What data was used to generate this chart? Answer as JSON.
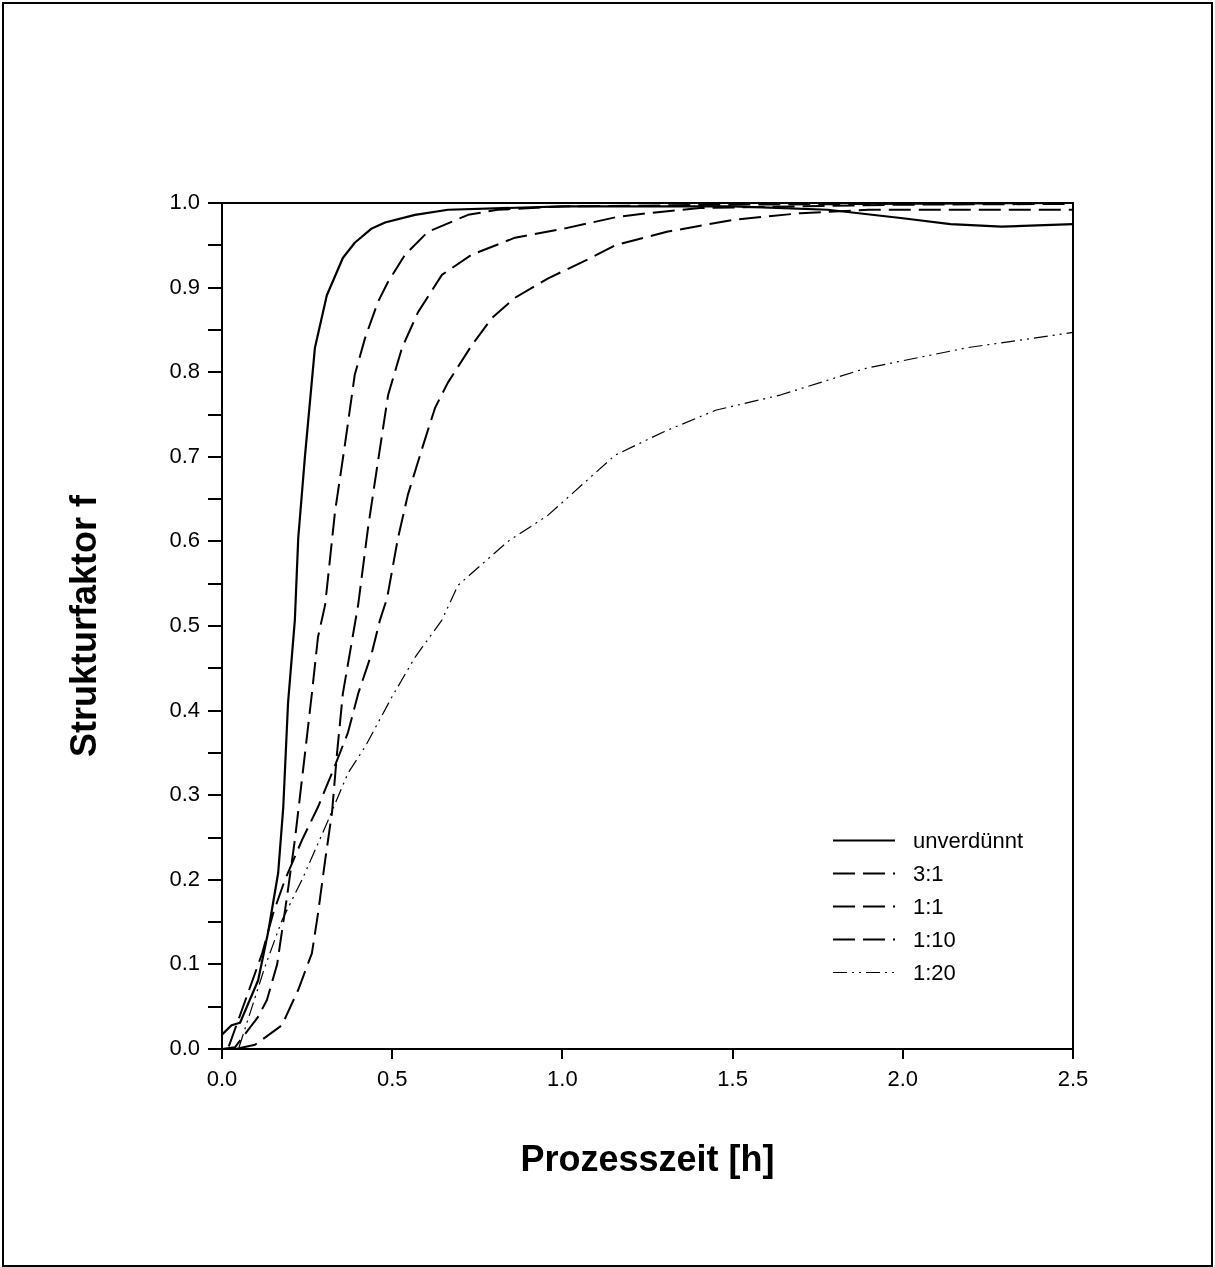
{
  "chart_data": {
    "type": "line",
    "xlabel": "Prozesszeit [h]",
    "ylabel": "Strukturfaktor f",
    "xlim": [
      0,
      2.5
    ],
    "ylim": [
      0,
      1
    ],
    "xticks": [
      {
        "value": 0,
        "label": "0.0"
      },
      {
        "value": 0.5,
        "label": "0.5"
      },
      {
        "value": 1,
        "label": "1.0"
      },
      {
        "value": 1.5,
        "label": "1.5"
      },
      {
        "value": 2,
        "label": "2.0"
      },
      {
        "value": 2.5,
        "label": "2.5"
      }
    ],
    "yticks": [
      {
        "value": 0,
        "label": "0.0"
      },
      {
        "value": 0.05,
        "label": null
      },
      {
        "value": 0.1,
        "label": "0.1"
      },
      {
        "value": 0.15,
        "label": null
      },
      {
        "value": 0.2,
        "label": "0.2"
      },
      {
        "value": 0.25,
        "label": null
      },
      {
        "value": 0.3,
        "label": "0.3"
      },
      {
        "value": 0.35,
        "label": null
      },
      {
        "value": 0.4,
        "label": "0.4"
      },
      {
        "value": 0.45,
        "label": null
      },
      {
        "value": 0.5,
        "label": "0.5"
      },
      {
        "value": 0.55,
        "label": null
      },
      {
        "value": 0.6,
        "label": "0.6"
      },
      {
        "value": 0.65,
        "label": null
      },
      {
        "value": 0.7,
        "label": "0.7"
      },
      {
        "value": 0.75,
        "label": null
      },
      {
        "value": 0.8,
        "label": "0.8"
      },
      {
        "value": 0.85,
        "label": null
      },
      {
        "value": 0.9,
        "label": "0.9"
      },
      {
        "value": 0.95,
        "label": null
      },
      {
        "value": 1,
        "label": "1.0"
      }
    ],
    "grid": false,
    "legend": "bottom right",
    "marker": "none",
    "series": [
      {
        "name": "unverdünnt",
        "color": "#000000",
        "line_style": "solid",
        "x": [
          0,
          0.028,
          0.053,
          0.106,
          0.135,
          0.165,
          0.18,
          0.194,
          0.214,
          0.224,
          0.244,
          0.273,
          0.308,
          0.355,
          0.39,
          0.44,
          0.479,
          0.567,
          0.664,
          1.0,
          1.5,
          1.78,
          2.0,
          2.14,
          2.29,
          2.5
        ],
        "values": [
          0.017,
          0.028,
          0.031,
          0.081,
          0.137,
          0.208,
          0.286,
          0.409,
          0.507,
          0.604,
          0.702,
          0.829,
          0.891,
          0.935,
          0.953,
          0.97,
          0.977,
          0.986,
          0.992,
          0.996,
          0.996,
          0.992,
          0.982,
          0.975,
          0.972,
          0.975
        ]
      },
      {
        "name": "3:1",
        "color": "#000000",
        "line_style": "dashed",
        "x": [
          0,
          0.038,
          0.106,
          0.132,
          0.162,
          0.191,
          0.214,
          0.244,
          0.264,
          0.282,
          0.303,
          0.332,
          0.361,
          0.39,
          0.42,
          0.458,
          0.488,
          0.538,
          0.605,
          0.723,
          0.81,
          1.0,
          1.5,
          2.0,
          2.5
        ],
        "values": [
          0,
          0.002,
          0.038,
          0.058,
          0.1,
          0.18,
          0.247,
          0.35,
          0.42,
          0.487,
          0.525,
          0.635,
          0.714,
          0.797,
          0.84,
          0.883,
          0.907,
          0.939,
          0.966,
          0.986,
          0.992,
          0.996,
          0.998,
          0.999,
          1.0
        ]
      },
      {
        "name": "1:1",
        "color": "#000000",
        "line_style": "dashed",
        "x": [
          0.04,
          0.097,
          0.176,
          0.224,
          0.264,
          0.282,
          0.303,
          0.323,
          0.338,
          0.355,
          0.382,
          0.4,
          0.429,
          0.458,
          0.488,
          0.529,
          0.576,
          0.646,
          0.734,
          0.861,
          1.008,
          1.155,
          1.25,
          1.404,
          1.7,
          2.0,
          2.5
        ],
        "values": [
          0,
          0.005,
          0.028,
          0.07,
          0.113,
          0.16,
          0.223,
          0.279,
          0.35,
          0.42,
          0.483,
          0.525,
          0.616,
          0.694,
          0.773,
          0.829,
          0.871,
          0.915,
          0.939,
          0.959,
          0.97,
          0.983,
          0.988,
          0.994,
          0.996,
          0.998,
          0.999
        ]
      },
      {
        "name": "1:10",
        "color": "#000000",
        "line_style": "dashed",
        "x": [
          0.02,
          0.118,
          0.15,
          0.185,
          0.235,
          0.282,
          0.323,
          0.37,
          0.4,
          0.44,
          0.464,
          0.485,
          0.517,
          0.546,
          0.588,
          0.626,
          0.664,
          0.734,
          0.793,
          0.861,
          0.958,
          1.058,
          1.155,
          1.307,
          1.5,
          1.7,
          1.9,
          2.2,
          2.5
        ],
        "values": [
          0.003,
          0.113,
          0.16,
          0.2,
          0.247,
          0.286,
          0.326,
          0.374,
          0.42,
          0.468,
          0.507,
          0.533,
          0.604,
          0.655,
          0.71,
          0.758,
          0.788,
          0.832,
          0.864,
          0.888,
          0.911,
          0.93,
          0.95,
          0.966,
          0.98,
          0.988,
          0.992,
          0.992,
          0.992
        ]
      },
      {
        "name": "1:20",
        "color": "#000000",
        "line_style": "dotted",
        "x": [
          0.05,
          0.126,
          0.176,
          0.235,
          0.303,
          0.37,
          0.42,
          0.499,
          0.567,
          0.646,
          0.693,
          0.84,
          0.958,
          1.155,
          1.3,
          1.45,
          1.64,
          1.895,
          2.19,
          2.5
        ],
        "values": [
          0.002,
          0.097,
          0.152,
          0.2,
          0.262,
          0.326,
          0.357,
          0.416,
          0.463,
          0.507,
          0.548,
          0.6,
          0.631,
          0.702,
          0.73,
          0.755,
          0.773,
          0.805,
          0.829,
          0.847
        ]
      }
    ]
  }
}
